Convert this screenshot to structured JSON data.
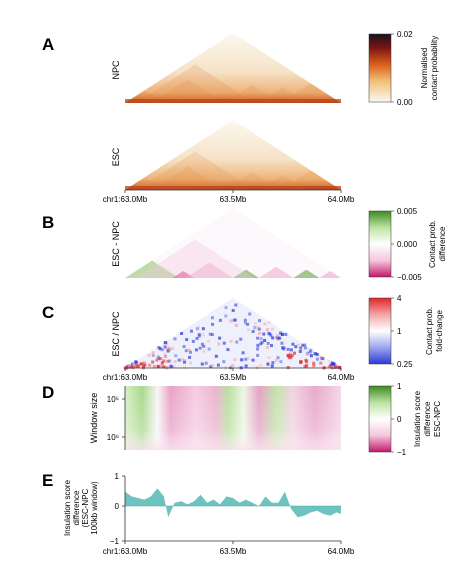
{
  "chart_data": [
    {
      "panel": "A",
      "type": "heatmap",
      "rows": [
        "NPC",
        "ESC"
      ],
      "colorbar": {
        "min": "0.00",
        "max": "0.02",
        "label": [
          "Normalised",
          "contact probability"
        ],
        "colors": [
          "#fbf8ef",
          "#f1c27a",
          "#d9601c",
          "#7b1412",
          "#16131f"
        ]
      },
      "xticks": [
        "chr1:63.0Mb",
        "63.5Mb",
        "64.0Mb"
      ]
    },
    {
      "panel": "B",
      "type": "heatmap",
      "ylabel": "ESC - NPC",
      "colorbar": {
        "ticks": [
          "0.005",
          "0.000",
          "−0.005"
        ],
        "label": [
          "Contact prob.",
          "difference"
        ],
        "colors": [
          "#c2186b",
          "#f5c6dd",
          "#ffffff",
          "#bde3a2",
          "#3d8a22"
        ]
      }
    },
    {
      "panel": "C",
      "type": "heatmap",
      "ylabel": "ESC / NPC",
      "colorbar": {
        "ticks": [
          "4",
          "1",
          "0.25"
        ],
        "label": [
          "Contact prob.",
          "fold-change"
        ],
        "colors": [
          "#2a3bd8",
          "#9fa6ee",
          "#ffffff",
          "#f3a5a5",
          "#e0262b"
        ]
      },
      "xticks": [
        "chr1:63.0Mb",
        "63.5Mb",
        "64.0Mb"
      ]
    },
    {
      "panel": "D",
      "type": "heatmap",
      "ylabel": "Window size",
      "yticks": [
        "10⁵",
        "10⁶"
      ],
      "colorbar": {
        "ticks": [
          "1",
          "0",
          "−1"
        ],
        "label": [
          "Insulation score",
          "difference",
          "ESC-NPC"
        ],
        "colors": [
          "#c2186b",
          "#f5c6dd",
          "#ffffff",
          "#bde3a2",
          "#3d8a22"
        ]
      }
    },
    {
      "panel": "E",
      "type": "area",
      "ylabel": [
        "Insulation score",
        "difference",
        "(ESC-NPC",
        "100kb window)"
      ],
      "yticks": [
        "1",
        "0",
        "−1"
      ],
      "ylim": [
        -1,
        1
      ],
      "xlim": [
        63.0,
        64.0
      ],
      "xticks": [
        "chr1:63.0Mb",
        "63.5Mb",
        "64.0Mb"
      ],
      "color": "#6cc3bf",
      "x": [
        63.0,
        63.03,
        63.06,
        63.09,
        63.12,
        63.15,
        63.18,
        63.2,
        63.23,
        63.26,
        63.29,
        63.32,
        63.35,
        63.38,
        63.41,
        63.44,
        63.47,
        63.5,
        63.53,
        63.56,
        63.59,
        63.62,
        63.65,
        63.68,
        63.71,
        63.74,
        63.77,
        63.8,
        63.83,
        63.86,
        63.89,
        63.92,
        63.95,
        63.98,
        64.0
      ],
      "y": [
        0.45,
        0.3,
        0.25,
        0.2,
        0.3,
        0.55,
        0.3,
        -0.35,
        0.1,
        0.15,
        0.05,
        0.15,
        0.35,
        0.1,
        0.2,
        0.05,
        0.3,
        0.25,
        0.1,
        0.2,
        0.1,
        0.0,
        0.3,
        0.1,
        0.1,
        0.45,
        -0.1,
        -0.35,
        -0.3,
        -0.2,
        -0.15,
        -0.25,
        -0.3,
        -0.2,
        -0.25
      ]
    }
  ],
  "panel_labels": [
    "A",
    "B",
    "C",
    "D",
    "E"
  ]
}
